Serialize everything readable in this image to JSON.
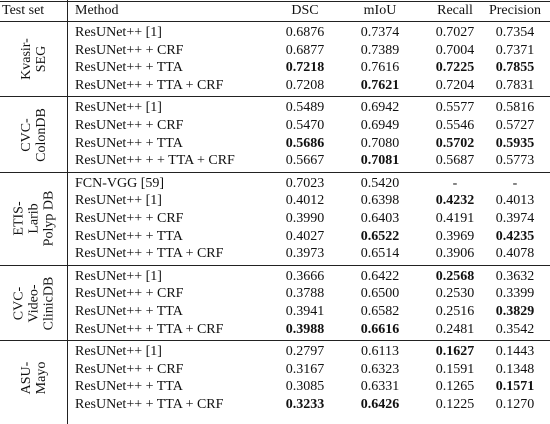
{
  "table": {
    "header": [
      "Test set",
      "Method",
      "DSC",
      "mIoU",
      "Recall",
      "Precision"
    ],
    "groups": [
      {
        "label": [
          "Kvasir-",
          "SEG"
        ],
        "rows": [
          {
            "method": "ResUNet++ [1]",
            "cells": [
              "0.6876",
              "0.7374",
              "0.7027",
              "0.7354"
            ],
            "bold": []
          },
          {
            "method": "ResUNet++ + CRF",
            "cells": [
              "0.6877",
              "0.7389",
              "0.7004",
              "0.7371"
            ],
            "bold": []
          },
          {
            "method": "ResUNet++ + TTA",
            "cells": [
              "0.7218",
              "0.7616",
              "0.7225",
              "0.7855"
            ],
            "bold": [
              0,
              2,
              3
            ]
          },
          {
            "method": "ResUNet++ + TTA + CRF",
            "cells": [
              "0.7208",
              "0.7621",
              "0.7204",
              "0.7831"
            ],
            "bold": [
              1
            ]
          }
        ]
      },
      {
        "label": [
          "CVC-",
          "ColonDB"
        ],
        "rows": [
          {
            "method": "ResUNet++ [1]",
            "cells": [
              "0.5489",
              "0.6942",
              "0.5577",
              "0.5816"
            ],
            "bold": []
          },
          {
            "method": "ResUNet++ + CRF",
            "cells": [
              "0.5470",
              "0.6949",
              "0.5546",
              "0.5727"
            ],
            "bold": []
          },
          {
            "method": "ResUNet++ + TTA",
            "cells": [
              "0.5686",
              "0.7080",
              "0.5702",
              "0.5935"
            ],
            "bold": [
              0,
              2,
              3
            ]
          },
          {
            "method": "ResUNet++ + + TTA + CRF",
            "cells": [
              "0.5667",
              "0.7081",
              "0.5687",
              "0.5773"
            ],
            "bold": [
              1
            ]
          }
        ]
      },
      {
        "label": [
          "ETIS-",
          "Larib",
          "Polyp DB"
        ],
        "rows": [
          {
            "method": "FCN-VGG [59]",
            "cells": [
              "0.7023",
              "0.5420",
              "-",
              "-"
            ],
            "bold": []
          },
          {
            "method": "ResUNet++ [1]",
            "cells": [
              "0.4012",
              "0.6398",
              "0.4232",
              "0.4013"
            ],
            "bold": [
              2
            ]
          },
          {
            "method": "ResUNet++ + CRF",
            "cells": [
              "0.3990",
              "0.6403",
              "0.4191",
              "0.3974"
            ],
            "bold": []
          },
          {
            "method": "ResUNet++ + TTA",
            "cells": [
              "0.4027",
              "0.6522",
              "0.3969",
              "0.4235"
            ],
            "bold": [
              1,
              3
            ]
          },
          {
            "method": "ResUNet++ + TTA + CRF",
            "cells": [
              "0.3973",
              "0.6514",
              "0.3906",
              "0.4078"
            ],
            "bold": []
          }
        ]
      },
      {
        "label": [
          "CVC-",
          "Video-",
          "ClinicDB"
        ],
        "rows": [
          {
            "method": "ResUNet++ [1]",
            "cells": [
              "0.3666",
              "0.6422",
              "0.2568",
              "0.3632"
            ],
            "bold": [
              2
            ]
          },
          {
            "method": "ResUNet++ + CRF",
            "cells": [
              "0.3788",
              "0.6500",
              "0.2530",
              "0.3399"
            ],
            "bold": []
          },
          {
            "method": "ResUNet++ + TTA",
            "cells": [
              "0.3941",
              "0.6582",
              "0.2516",
              "0.3829"
            ],
            "bold": [
              3
            ]
          },
          {
            "method": "ResUNet++ + TTA + CRF",
            "cells": [
              "0.3988",
              "0.6616",
              "0.2481",
              "0.3542"
            ],
            "bold": [
              0,
              1
            ]
          }
        ]
      },
      {
        "label": [
          "ASU-",
          "Mayo"
        ],
        "rows": [
          {
            "method": "ResUNet++ [1]",
            "cells": [
              "0.2797",
              "0.6113",
              "0.1627",
              "0.1443"
            ],
            "bold": [
              2
            ]
          },
          {
            "method": "ResUNet++ + CRF",
            "cells": [
              "0.3167",
              "0.6323",
              "0.1591",
              "0.1348"
            ],
            "bold": []
          },
          {
            "method": "ResUNet++ + TTA",
            "cells": [
              "0.3085",
              "0.6331",
              "0.1265",
              "0.1571"
            ],
            "bold": [
              3
            ]
          },
          {
            "method": "ResUNet++ + TTA + CRF",
            "cells": [
              "0.3233",
              "0.6426",
              "0.1225",
              "0.1270"
            ],
            "bold": [
              0,
              1
            ]
          }
        ]
      }
    ]
  }
}
